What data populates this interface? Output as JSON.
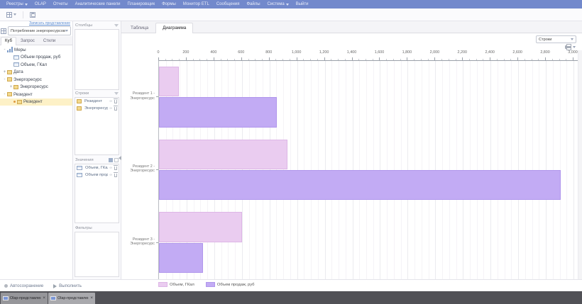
{
  "menubar": {
    "items": [
      {
        "label": "Реестры",
        "caret": true
      },
      {
        "label": "OLAP"
      },
      {
        "label": "Отчеты"
      },
      {
        "label": "Аналитические панели"
      },
      {
        "label": "Планировщик"
      },
      {
        "label": "Формы"
      },
      {
        "label": "Монитор ETL"
      },
      {
        "label": "Сообщения"
      },
      {
        "label": "Файлы"
      },
      {
        "label": "Система",
        "caret": true
      },
      {
        "label": "Выйти"
      }
    ]
  },
  "sidebar": {
    "save_view_link": "Записать представление",
    "cube_select_value": "Потребление энергоресурсов",
    "tabs": [
      {
        "label": "Куб",
        "active": true
      },
      {
        "label": "Запрос"
      },
      {
        "label": "Стили"
      }
    ],
    "tree": [
      {
        "label": "Меры",
        "icon": "measures",
        "expander": "-",
        "level": 0
      },
      {
        "label": "Объем продаж, руб",
        "icon": "measure",
        "level": 1
      },
      {
        "label": "Объем, ГКал",
        "icon": "measure",
        "level": 1
      },
      {
        "label": "Дата",
        "icon": "dimension",
        "expander": "+",
        "level": 0
      },
      {
        "label": "Энергоресурс",
        "icon": "dimension",
        "expander": "-",
        "level": 0
      },
      {
        "label": "Энергоресурс",
        "icon": "dimension",
        "expander": "+",
        "level": 1
      },
      {
        "label": "Резидент",
        "icon": "dimension",
        "expander": "-",
        "level": 0
      },
      {
        "label": "Резидент",
        "icon": "dimension",
        "bullet": true,
        "level": 1,
        "selected": true
      }
    ]
  },
  "pivot": {
    "columns_title": "Столбцы",
    "rows_title": "Строки",
    "rows": [
      "Резидент",
      "Энергоресурс"
    ],
    "values_title": "Значения",
    "values": [
      "Объем, ГКал",
      "Объем продаж..."
    ],
    "filters_title": "Фильтры"
  },
  "view_tabs": [
    {
      "label": "Таблица"
    },
    {
      "label": "Диаграмма",
      "active": true
    }
  ],
  "chart_controls": {
    "mode_select_value": "Строки"
  },
  "chart_data": {
    "type": "bar",
    "orientation": "horizontal",
    "title": "",
    "categories": [
      "Резидент 1 - Энергоресурс",
      "Резидент 2 - Энергоресурс",
      "Резидент 3 - Энергоресурс"
    ],
    "series": [
      {
        "name": "Объем, ГКал",
        "color": "#eaccf0",
        "border": "#ddb6e6",
        "values": [
          145,
          930,
          600
        ]
      },
      {
        "name": "Объем продаж, руб",
        "color": "#c2abf4",
        "border": "#b096ec",
        "values": [
          855,
          2910,
          320
        ]
      }
    ],
    "xlim": [
      0,
      3000
    ],
    "tick_step": 200,
    "minor_step": 50,
    "tick_labels": [
      "0",
      "200",
      "400",
      "600",
      "800",
      "1,000",
      "1,200",
      "1,400",
      "1,600",
      "1,800",
      "2,000",
      "2,200",
      "2,400",
      "2,600",
      "2,800",
      "3,000"
    ],
    "axis_position": "top",
    "grid": true,
    "legend_position": "bottom"
  },
  "action_bar": {
    "autosave_label": "Автосохранение",
    "run_label": "Выполнить"
  },
  "window_tabs": [
    {
      "label": "Olap-представления"
    },
    {
      "label": "Olap-представление",
      "active": true
    }
  ],
  "colors": {
    "menubar": "#7289cc",
    "link": "#5b8bd0",
    "selection": "#fdf1c7"
  }
}
